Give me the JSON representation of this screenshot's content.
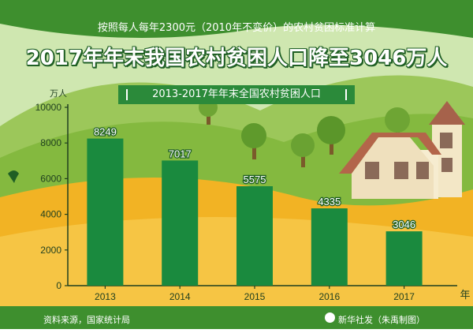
{
  "header": {
    "subtitle": "按照每人每年2300元（2010年不变价）的农村贫困标准计算",
    "title": "2017年年末我国农村贫困人口降至3046万人"
  },
  "footer": {
    "source": "资料来源，国家统计局",
    "credit": "新华社发（朱禹制图）"
  },
  "colors": {
    "bar": "#1a8a3e",
    "axis": "#1f3f1f",
    "sky": "#cfe7b0",
    "hill_green": "#7fb43c",
    "field_yellow": "#f2b324",
    "footer_green": "#3e8f2e"
  },
  "chart_data": {
    "type": "bar",
    "title": "2013-2017年年末全国农村贫困人口",
    "ylabel": "万人",
    "xlabel": "年",
    "categories": [
      "2013",
      "2014",
      "2015",
      "2016",
      "2017"
    ],
    "values": [
      8249,
      7017,
      5575,
      4335,
      3046
    ],
    "data_labels": [
      "8249",
      "7017",
      "5575",
      "4335",
      "3046"
    ],
    "ylim": [
      0,
      10000
    ],
    "yticks": [
      0,
      2000,
      4000,
      6000,
      8000,
      10000
    ],
    "ytick_labels": [
      "0",
      "2000",
      "4000",
      "6000",
      "8000",
      "10000"
    ],
    "grid": false,
    "legend": "none"
  }
}
